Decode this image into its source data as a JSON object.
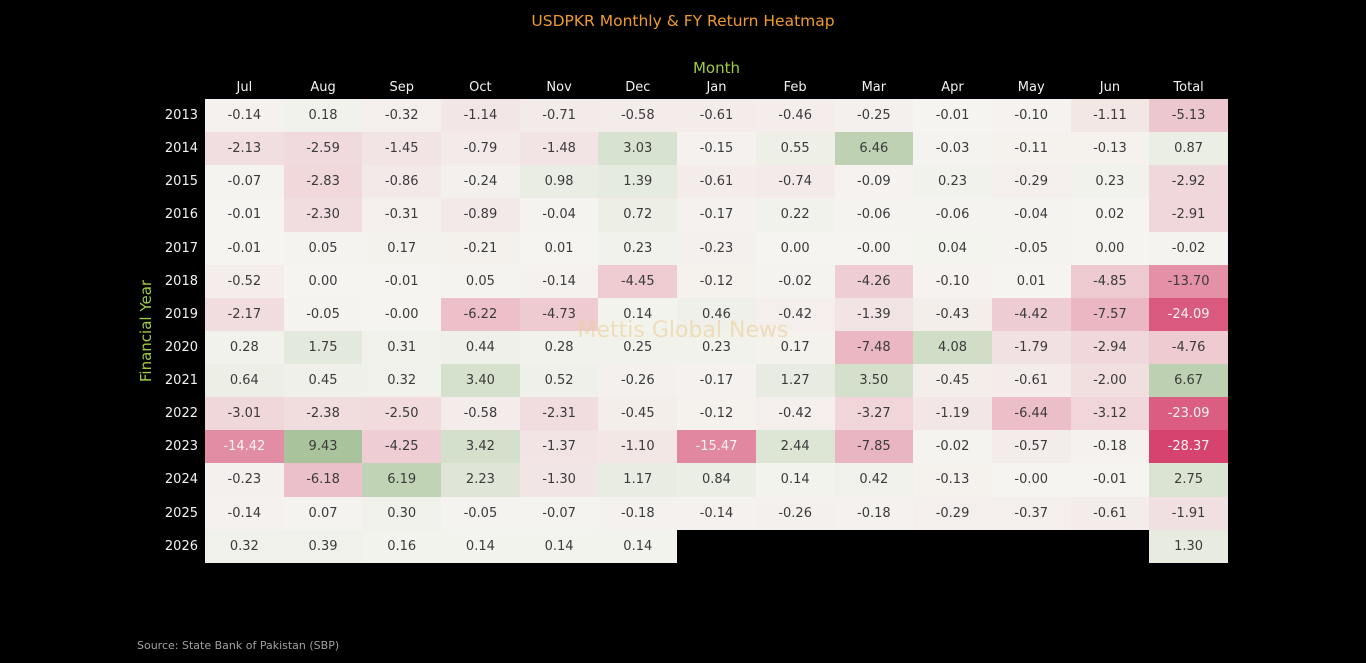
{
  "header": {
    "title": "USDPKR Monthly & FY Return Heatmap"
  },
  "watermark": {
    "text": "Mettis Global News"
  },
  "footer": {
    "source": "Source: State Bank of Pakistan (SBP)"
  },
  "colors": {
    "background": "#000000",
    "title": "#ef9a2f",
    "axis_label_green": "#9fcc3f",
    "tick_label": "#f2f2f2",
    "cell_text_dark": "#3b3b3b",
    "cell_text_light": "#f5f3f4",
    "neutral_cell": "#f5f4f0",
    "negative_end": "#d6436e",
    "positive_end": "#a9c49b",
    "watermark": "#eccf96",
    "source_text": "#a0a0a0"
  },
  "chart_data": {
    "type": "heatmap",
    "title": "USDPKR Monthly & FY Return Heatmap",
    "xlabel": "Month",
    "ylabel": "Financial Year",
    "legend": "none",
    "grid": "off",
    "value_range_note": "diverging scale centered at 0; min -28.37, max 9.43",
    "columns": [
      "Jul",
      "Aug",
      "Sep",
      "Oct",
      "Nov",
      "Dec",
      "Jan",
      "Feb",
      "Mar",
      "Apr",
      "May",
      "Jun",
      "Total"
    ],
    "rows": [
      "2013",
      "2014",
      "2015",
      "2016",
      "2017",
      "2018",
      "2019",
      "2020",
      "2021",
      "2022",
      "2023",
      "2024",
      "2025",
      "2026"
    ],
    "values": [
      [
        "-0.14",
        "0.18",
        "-0.32",
        "-1.14",
        "-0.71",
        "-0.58",
        "-0.61",
        "-0.46",
        "-0.25",
        "-0.01",
        "-0.10",
        "-1.11",
        "-5.13"
      ],
      [
        "-2.13",
        "-2.59",
        "-1.45",
        "-0.79",
        "-1.48",
        "3.03",
        "-0.15",
        "0.55",
        "6.46",
        "-0.03",
        "-0.11",
        "-0.13",
        "0.87"
      ],
      [
        "-0.07",
        "-2.83",
        "-0.86",
        "-0.24",
        "0.98",
        "1.39",
        "-0.61",
        "-0.74",
        "-0.09",
        "0.23",
        "-0.29",
        "0.23",
        "-2.92"
      ],
      [
        "-0.01",
        "-2.30",
        "-0.31",
        "-0.89",
        "-0.04",
        "0.72",
        "-0.17",
        "0.22",
        "-0.06",
        "-0.06",
        "-0.04",
        "0.02",
        "-2.91"
      ],
      [
        "-0.01",
        "0.05",
        "0.17",
        "-0.21",
        "0.01",
        "0.23",
        "-0.23",
        "0.00",
        "-0.00",
        "0.04",
        "-0.05",
        "0.00",
        "-0.02"
      ],
      [
        "-0.52",
        "0.00",
        "-0.01",
        "0.05",
        "-0.14",
        "-4.45",
        "-0.12",
        "-0.02",
        "-4.26",
        "-0.10",
        "0.01",
        "-4.85",
        "-13.70"
      ],
      [
        "-2.17",
        "-0.05",
        "-0.00",
        "-6.22",
        "-4.73",
        "0.14",
        "0.46",
        "-0.42",
        "-1.39",
        "-0.43",
        "-4.42",
        "-7.57",
        "-24.09"
      ],
      [
        "0.28",
        "1.75",
        "0.31",
        "0.44",
        "0.28",
        "0.25",
        "0.23",
        "0.17",
        "-7.48",
        "4.08",
        "-1.79",
        "-2.94",
        "-4.76"
      ],
      [
        "0.64",
        "0.45",
        "0.32",
        "3.40",
        "0.52",
        "-0.26",
        "-0.17",
        "1.27",
        "3.50",
        "-0.45",
        "-0.61",
        "-2.00",
        "6.67"
      ],
      [
        "-3.01",
        "-2.38",
        "-2.50",
        "-0.58",
        "-2.31",
        "-0.45",
        "-0.12",
        "-0.42",
        "-3.27",
        "-1.19",
        "-6.44",
        "-3.12",
        "-23.09"
      ],
      [
        "-14.42",
        "9.43",
        "-4.25",
        "3.42",
        "-1.37",
        "-1.10",
        "-15.47",
        "2.44",
        "-7.85",
        "-0.02",
        "-0.57",
        "-0.18",
        "-28.37"
      ],
      [
        "-0.23",
        "-6.18",
        "6.19",
        "2.23",
        "-1.30",
        "1.17",
        "0.84",
        "0.14",
        "0.42",
        "-0.13",
        "-0.00",
        "-0.01",
        "2.75"
      ],
      [
        "-0.14",
        "0.07",
        "0.30",
        "-0.05",
        "-0.07",
        "-0.18",
        "-0.14",
        "-0.26",
        "-0.18",
        "-0.29",
        "-0.37",
        "-0.61",
        "-1.91"
      ],
      [
        "0.32",
        "0.39",
        "0.16",
        "0.14",
        "0.14",
        "0.14",
        null,
        null,
        null,
        null,
        null,
        null,
        "1.30"
      ]
    ]
  }
}
